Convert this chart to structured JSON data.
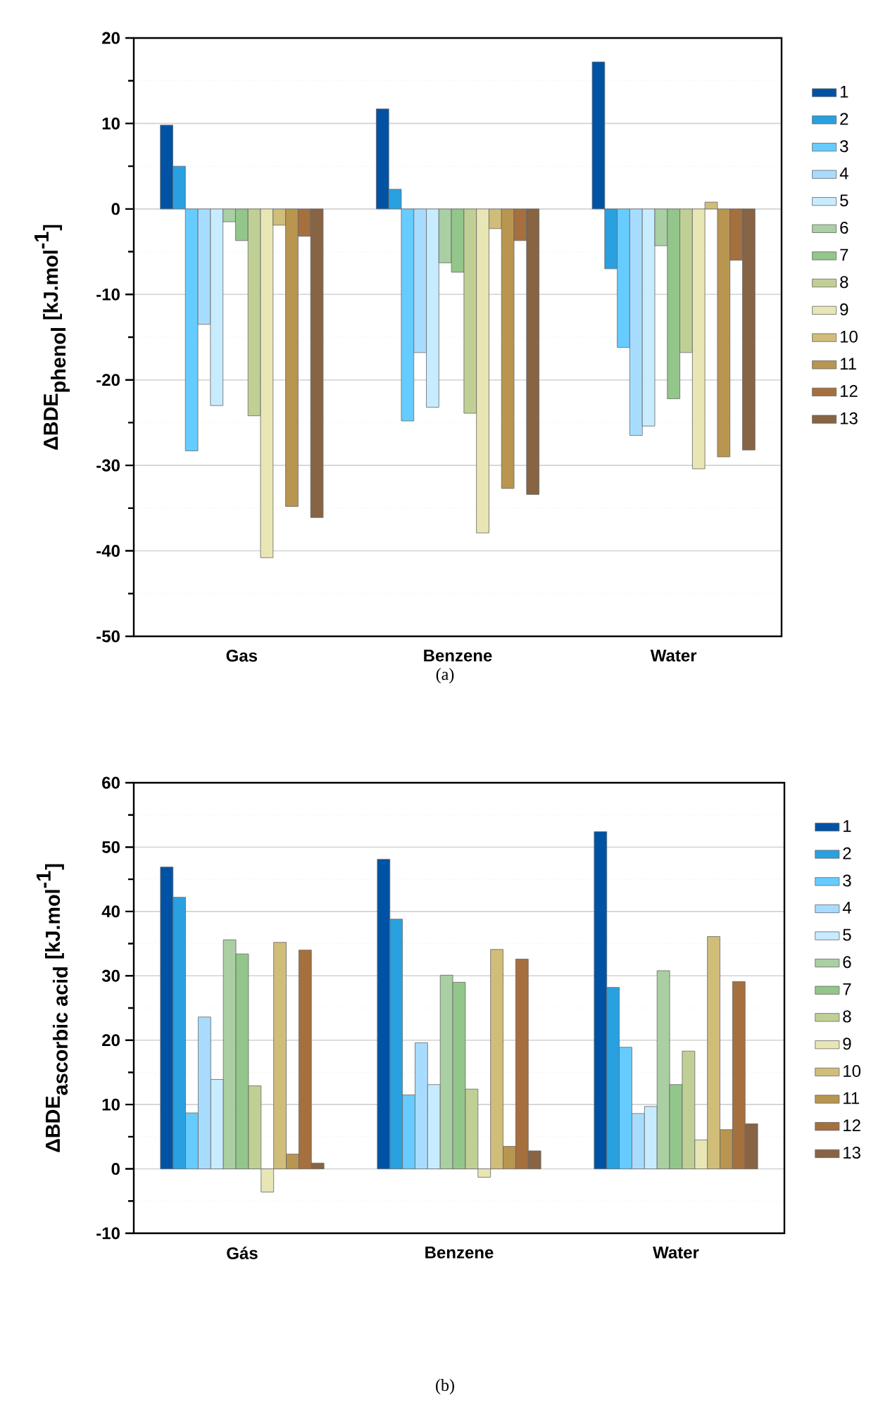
{
  "chart_data": [
    {
      "type": "bar",
      "ylabel": "\\mbox{ΔBDE}_{\\mbox{phenol}}\\ \\mbox{[kJ.mol}^{\\mbox{-1}}\\mbox{]}",
      "categories": [
        "Gas",
        "Benzene",
        "Water"
      ],
      "ylim": [
        -50,
        20
      ],
      "yticks": [
        -50,
        -40,
        -30,
        -20,
        -10,
        0,
        10,
        20
      ],
      "grid": "y",
      "legend": "right",
      "annotations": [
        "(a)"
      ],
      "series": [
        {
          "name": "1",
          "color": "#0052a5",
          "values": [
            9.8,
            11.7,
            17.2
          ]
        },
        {
          "name": "2",
          "color": "#29a0e0",
          "values": [
            5.0,
            2.3,
            -7.0
          ]
        },
        {
          "name": "3",
          "color": "#66ccff",
          "values": [
            -28.3,
            -24.8,
            -16.2
          ]
        },
        {
          "name": "4",
          "color": "#a8dcff",
          "values": [
            -13.5,
            -16.8,
            -26.5
          ]
        },
        {
          "name": "5",
          "color": "#c8ecff",
          "values": [
            -23.0,
            -23.2,
            -25.4
          ]
        },
        {
          "name": "6",
          "color": "#a9cfa2",
          "values": [
            -1.5,
            -6.3,
            -4.3
          ]
        },
        {
          "name": "7",
          "color": "#93c68a",
          "values": [
            -3.7,
            -7.4,
            -22.2
          ]
        },
        {
          "name": "8",
          "color": "#c0d095",
          "values": [
            -24.2,
            -23.9,
            -16.8
          ]
        },
        {
          "name": "9",
          "color": "#e8e6b4",
          "values": [
            -40.8,
            -37.9,
            -30.4
          ]
        },
        {
          "name": "10",
          "color": "#d1bd7a",
          "values": [
            -1.9,
            -2.3,
            0.8
          ]
        },
        {
          "name": "11",
          "color": "#b89650",
          "values": [
            -34.8,
            -32.7,
            -29.0
          ]
        },
        {
          "name": "12",
          "color": "#a66f3e",
          "values": [
            -3.2,
            -3.7,
            -6.0
          ]
        },
        {
          "name": "13",
          "color": "#876443",
          "values": [
            -36.1,
            -33.4,
            -28.2
          ]
        }
      ]
    },
    {
      "type": "bar",
      "ylabel": "\\mbox{ΔBDE}_{\\mbox{ascorbic acid}}\\ \\mbox{[kJ.mol}^{\\mbox{-1}}\\mbox{]}",
      "categories": [
        "Gás",
        "Benzene",
        "Water"
      ],
      "ylim": [
        -10,
        60
      ],
      "yticks": [
        -10,
        0,
        10,
        20,
        30,
        40,
        50,
        60
      ],
      "grid": "y",
      "legend": "right",
      "annotations": [
        "(b)"
      ],
      "series": [
        {
          "name": "1",
          "color": "#0052a5",
          "values": [
            46.9,
            48.1,
            52.4
          ]
        },
        {
          "name": "2",
          "color": "#29a0e0",
          "values": [
            42.2,
            38.8,
            28.2
          ]
        },
        {
          "name": "3",
          "color": "#66ccff",
          "values": [
            8.7,
            11.5,
            18.9
          ]
        },
        {
          "name": "4",
          "color": "#a8dcff",
          "values": [
            23.6,
            19.6,
            8.6
          ]
        },
        {
          "name": "5",
          "color": "#c8ecff",
          "values": [
            13.9,
            13.1,
            9.7
          ]
        },
        {
          "name": "6",
          "color": "#a9cfa2",
          "values": [
            35.6,
            30.1,
            30.8
          ]
        },
        {
          "name": "7",
          "color": "#93c68a",
          "values": [
            33.4,
            29.0,
            13.1
          ]
        },
        {
          "name": "8",
          "color": "#c0d095",
          "values": [
            12.9,
            12.4,
            18.3
          ]
        },
        {
          "name": "9",
          "color": "#e8e6b4",
          "values": [
            -3.6,
            -1.3,
            4.5
          ]
        },
        {
          "name": "10",
          "color": "#d1bd7a",
          "values": [
            35.2,
            34.1,
            36.1
          ]
        },
        {
          "name": "11",
          "color": "#b89650",
          "values": [
            2.3,
            3.5,
            6.1
          ]
        },
        {
          "name": "12",
          "color": "#a66f3e",
          "values": [
            34.0,
            32.6,
            29.1
          ]
        },
        {
          "name": "13",
          "color": "#876443",
          "values": [
            0.9,
            2.8,
            7.0
          ]
        }
      ]
    }
  ]
}
